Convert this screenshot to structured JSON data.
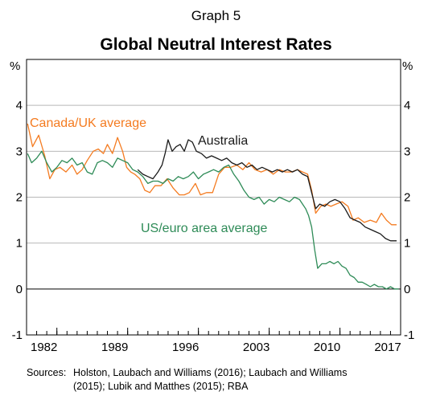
{
  "graph_number": "Graph 5",
  "chart_data": {
    "type": "line",
    "title": "Global Neutral Interest Rates",
    "ylabel_left": "%",
    "ylabel_right": "%",
    "ylim": [
      -1,
      5
    ],
    "y_ticks": [
      4,
      3,
      2,
      1,
      0,
      -1
    ],
    "xlim": [
      1980.0,
      2017.0
    ],
    "x_ticks": [
      {
        "label": "1982",
        "value": 1983
      },
      {
        "label": "1989",
        "value": 1990
      },
      {
        "label": "1996",
        "value": 1997
      },
      {
        "label": "2003",
        "value": 2004
      },
      {
        "label": "2010",
        "value": 2011
      },
      {
        "label": "2017",
        "value": 2017
      }
    ],
    "grid": true,
    "zero_line": true,
    "series": [
      {
        "name": "Canada/UK average",
        "color": "#f47b20",
        "x": [
          1980.1,
          1980.6,
          1981.2,
          1981.8,
          1982.3,
          1982.8,
          1983.3,
          1983.9,
          1984.5,
          1985.0,
          1985.5,
          1986.0,
          1986.6,
          1987.1,
          1987.6,
          1988.0,
          1988.5,
          1989.0,
          1989.5,
          1989.9,
          1990.3,
          1990.7,
          1991.2,
          1991.7,
          1992.2,
          1992.7,
          1993.3,
          1993.9,
          1994.5,
          1995.1,
          1995.6,
          1996.1,
          1996.7,
          1997.2,
          1997.8,
          1998.4,
          1999.0,
          1999.6,
          2000.2,
          2000.8,
          2001.4,
          2002.0,
          2002.6,
          2003.2,
          2003.8,
          2004.4,
          2005.0,
          2005.6,
          2006.2,
          2006.8,
          2007.3,
          2007.8,
          2008.2,
          2008.6,
          2009.1,
          2009.6,
          2010.1,
          2010.6,
          2011.2,
          2011.8,
          2012.3,
          2012.8,
          2013.4,
          2014.0,
          2014.6,
          2015.1,
          2015.6,
          2016.1,
          2016.6
        ],
        "values": [
          3.6,
          3.1,
          3.35,
          2.9,
          2.4,
          2.6,
          2.65,
          2.55,
          2.7,
          2.5,
          2.6,
          2.8,
          3.0,
          3.05,
          2.95,
          3.15,
          2.95,
          3.3,
          3.0,
          2.65,
          2.55,
          2.5,
          2.4,
          2.15,
          2.1,
          2.25,
          2.25,
          2.4,
          2.2,
          2.05,
          2.05,
          2.1,
          2.3,
          2.05,
          2.1,
          2.1,
          2.5,
          2.65,
          2.65,
          2.7,
          2.6,
          2.75,
          2.6,
          2.55,
          2.6,
          2.5,
          2.6,
          2.55,
          2.55,
          2.6,
          2.55,
          2.5,
          2.15,
          1.65,
          1.8,
          1.85,
          1.8,
          1.85,
          1.9,
          1.8,
          1.5,
          1.55,
          1.45,
          1.5,
          1.45,
          1.65,
          1.5,
          1.4,
          1.4
        ]
      },
      {
        "name": "Australia",
        "color": "#1a1a1a",
        "x": [
          1991.0,
          1991.5,
          1992.0,
          1992.5,
          1993.0,
          1993.4,
          1993.7,
          1994.0,
          1994.4,
          1994.8,
          1995.2,
          1995.6,
          1996.0,
          1996.4,
          1996.8,
          1997.3,
          1997.8,
          1998.3,
          1998.8,
          1999.3,
          1999.8,
          2000.3,
          2000.8,
          2001.3,
          2001.8,
          2002.3,
          2002.8,
          2003.3,
          2003.8,
          2004.3,
          2004.8,
          2005.3,
          2005.8,
          2006.3,
          2006.8,
          2007.3,
          2007.8,
          2008.2,
          2008.6,
          2009.0,
          2009.5,
          2010.0,
          2010.5,
          2011.0,
          2011.5,
          2012.0,
          2012.5,
          2013.0,
          2013.5,
          2014.0,
          2014.5,
          2015.0,
          2015.5,
          2016.0,
          2016.6
        ],
        "values": [
          2.6,
          2.5,
          2.45,
          2.4,
          2.55,
          2.7,
          2.95,
          3.25,
          3.0,
          3.1,
          3.15,
          3.0,
          3.25,
          3.2,
          3.0,
          2.95,
          2.85,
          2.9,
          2.85,
          2.8,
          2.85,
          2.75,
          2.7,
          2.75,
          2.65,
          2.7,
          2.6,
          2.65,
          2.6,
          2.55,
          2.6,
          2.55,
          2.6,
          2.55,
          2.6,
          2.5,
          2.45,
          2.1,
          1.75,
          1.85,
          1.8,
          1.9,
          1.95,
          1.9,
          1.75,
          1.55,
          1.5,
          1.45,
          1.35,
          1.3,
          1.25,
          1.2,
          1.1,
          1.05,
          1.05
        ]
      },
      {
        "name": "US/euro area average",
        "color": "#2e8b57",
        "x": [
          1980.1,
          1980.5,
          1981.0,
          1981.5,
          1982.0,
          1982.5,
          1983.0,
          1983.5,
          1984.0,
          1984.5,
          1985.0,
          1985.5,
          1986.0,
          1986.5,
          1987.0,
          1987.5,
          1988.0,
          1988.5,
          1989.0,
          1989.5,
          1990.0,
          1990.5,
          1991.0,
          1991.5,
          1992.0,
          1992.5,
          1993.0,
          1993.5,
          1994.0,
          1994.5,
          1995.0,
          1995.5,
          1996.0,
          1996.5,
          1997.0,
          1997.5,
          1998.0,
          1998.5,
          1999.0,
          1999.5,
          2000.0,
          2000.5,
          2001.0,
          2001.5,
          2002.0,
          2002.5,
          2003.0,
          2003.5,
          2004.0,
          2004.5,
          2005.0,
          2005.5,
          2006.0,
          2006.5,
          2007.0,
          2007.3,
          2007.6,
          2007.9,
          2008.2,
          2008.5,
          2008.8,
          2009.2,
          2009.6,
          2010.0,
          2010.4,
          2010.8,
          2011.2,
          2011.6,
          2012.0,
          2012.4,
          2012.8,
          2013.2,
          2013.6,
          2014.0,
          2014.4,
          2014.8,
          2015.2,
          2015.6,
          2016.0,
          2016.4,
          2016.8
        ],
        "values": [
          2.95,
          2.75,
          2.85,
          3.0,
          2.75,
          2.55,
          2.65,
          2.8,
          2.75,
          2.85,
          2.7,
          2.75,
          2.55,
          2.5,
          2.75,
          2.8,
          2.75,
          2.65,
          2.85,
          2.8,
          2.75,
          2.6,
          2.55,
          2.45,
          2.3,
          2.35,
          2.35,
          2.3,
          2.4,
          2.35,
          2.45,
          2.4,
          2.45,
          2.55,
          2.4,
          2.5,
          2.55,
          2.6,
          2.55,
          2.65,
          2.7,
          2.5,
          2.35,
          2.15,
          2.0,
          1.95,
          2.0,
          1.85,
          1.95,
          1.9,
          2.0,
          1.95,
          1.9,
          2.0,
          1.95,
          1.85,
          1.75,
          1.6,
          1.35,
          0.85,
          0.45,
          0.55,
          0.55,
          0.6,
          0.55,
          0.6,
          0.5,
          0.45,
          0.3,
          0.25,
          0.15,
          0.15,
          0.1,
          0.05,
          0.1,
          0.05,
          0.05,
          0.0,
          0.05,
          0.0,
          0.0
        ]
      }
    ],
    "annotations": [
      {
        "text": "Canada/UK average",
        "series": 0
      },
      {
        "text": "Australia",
        "series": 1
      },
      {
        "text": "US/euro area average",
        "series": 2
      }
    ]
  },
  "sources": {
    "label": "Sources:",
    "line1": "Holston, Laubach and Williams (2016); Laubach and Williams",
    "line2": "(2015); Lubik and Matthes (2015); RBA"
  }
}
